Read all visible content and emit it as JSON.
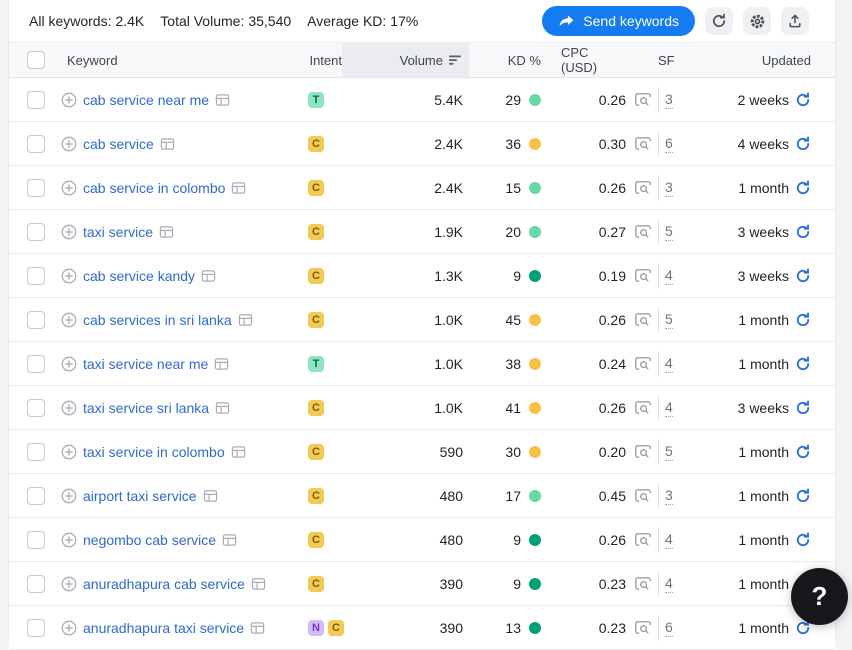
{
  "topbar": {
    "stats": [
      {
        "label": "All keywords:",
        "value": "2.4K"
      },
      {
        "label": "Total Volume:",
        "value": "35,540"
      },
      {
        "label": "Average KD:",
        "value": "17%"
      }
    ],
    "send_label": "Send keywords",
    "toolbar_icons": [
      "refresh-icon",
      "gear-icon",
      "export-icon"
    ]
  },
  "table": {
    "columns": {
      "keyword": "Keyword",
      "intent": "Intent",
      "volume": "Volume",
      "kd": "KD %",
      "cpc": "CPC (USD)",
      "sf": "SF",
      "updated": "Updated"
    },
    "sort": {
      "column": "Volume",
      "direction": "desc"
    },
    "rows": [
      {
        "keyword": "cab service near me",
        "intents": [
          "T"
        ],
        "volume": "5.4K",
        "kd": "29",
        "kd_level": "easy",
        "cpc": "0.26",
        "sf": "3",
        "updated": "2 weeks"
      },
      {
        "keyword": "cab service",
        "intents": [
          "C"
        ],
        "volume": "2.4K",
        "kd": "36",
        "kd_level": "possible",
        "cpc": "0.30",
        "sf": "6",
        "updated": "4 weeks"
      },
      {
        "keyword": "cab service in colombo",
        "intents": [
          "C"
        ],
        "volume": "2.4K",
        "kd": "15",
        "kd_level": "easy",
        "cpc": "0.26",
        "sf": "3",
        "updated": "1 month"
      },
      {
        "keyword": "taxi service",
        "intents": [
          "C"
        ],
        "volume": "1.9K",
        "kd": "20",
        "kd_level": "easy",
        "cpc": "0.27",
        "sf": "5",
        "updated": "3 weeks"
      },
      {
        "keyword": "cab service kandy",
        "intents": [
          "C"
        ],
        "volume": "1.3K",
        "kd": "9",
        "kd_level": "very_easy",
        "cpc": "0.19",
        "sf": "4",
        "updated": "3 weeks"
      },
      {
        "keyword": "cab services in sri lanka",
        "intents": [
          "C"
        ],
        "volume": "1.0K",
        "kd": "45",
        "kd_level": "possible",
        "cpc": "0.26",
        "sf": "5",
        "updated": "1 month"
      },
      {
        "keyword": "taxi service near me",
        "intents": [
          "T"
        ],
        "volume": "1.0K",
        "kd": "38",
        "kd_level": "possible",
        "cpc": "0.24",
        "sf": "4",
        "updated": "1 month"
      },
      {
        "keyword": "taxi service sri lanka",
        "intents": [
          "C"
        ],
        "volume": "1.0K",
        "kd": "41",
        "kd_level": "possible",
        "cpc": "0.26",
        "sf": "4",
        "updated": "3 weeks"
      },
      {
        "keyword": "taxi service in colombo",
        "intents": [
          "C"
        ],
        "volume": "590",
        "kd": "30",
        "kd_level": "possible",
        "cpc": "0.20",
        "sf": "5",
        "updated": "1 month"
      },
      {
        "keyword": "airport taxi service",
        "intents": [
          "C"
        ],
        "volume": "480",
        "kd": "17",
        "kd_level": "easy",
        "cpc": "0.45",
        "sf": "3",
        "updated": "1 month"
      },
      {
        "keyword": "negombo cab service",
        "intents": [
          "C"
        ],
        "volume": "480",
        "kd": "9",
        "kd_level": "very_easy",
        "cpc": "0.26",
        "sf": "4",
        "updated": "1 month"
      },
      {
        "keyword": "anuradhapura cab service",
        "intents": [
          "C"
        ],
        "volume": "390",
        "kd": "9",
        "kd_level": "very_easy",
        "cpc": "0.23",
        "sf": "4",
        "updated": "1 month"
      },
      {
        "keyword": "anuradhapura taxi service",
        "intents": [
          "N",
          "C"
        ],
        "volume": "390",
        "kd": "13",
        "kd_level": "very_easy",
        "cpc": "0.23",
        "sf": "6",
        "updated": "1 month"
      }
    ]
  },
  "help": {
    "label": "?"
  },
  "colors": {
    "accent_blue": "#157bf2",
    "link_blue": "#2e6ad1",
    "refresh_blue": "#2a6fdb",
    "help_bg": "#17181c",
    "intent": {
      "T": {
        "bg": "#8fe3bf",
        "fg": "#00694f"
      },
      "C": {
        "bg": "#f2ca55",
        "fg": "#7d5c0e"
      },
      "N": {
        "bg": "#d4bcf6",
        "fg": "#7436cc"
      }
    },
    "kd": {
      "very_easy": "#00a077",
      "easy": "#66d9a6",
      "possible": "#f7c243"
    }
  }
}
